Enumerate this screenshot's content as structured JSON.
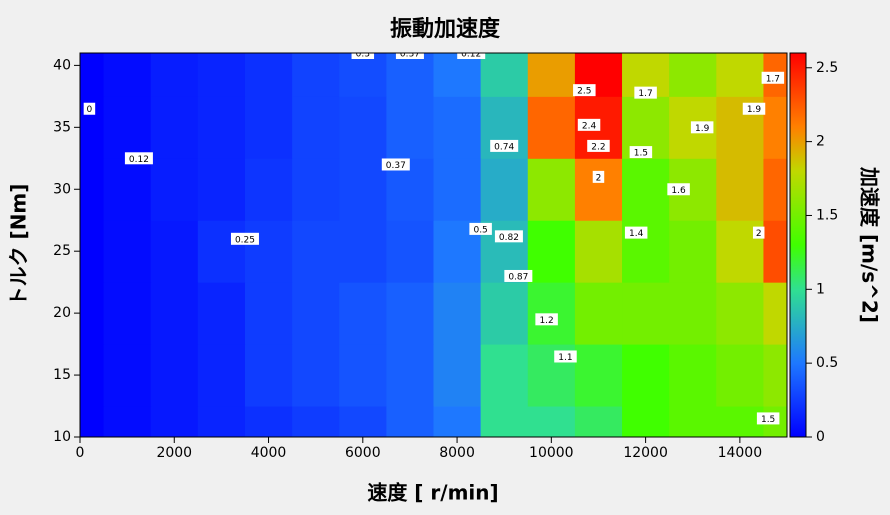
{
  "chart_data": {
    "type": "contour",
    "title": "振動加速度",
    "x_label": "速度 [ r/min]",
    "y_label": "トルク [Nm]",
    "colorbar_label": "加速度 [m/s^2]",
    "xlim": [
      0,
      15000
    ],
    "xticks": [
      0,
      2000,
      4000,
      6000,
      8000,
      10000,
      12000,
      14000
    ],
    "ylim": [
      10,
      41
    ],
    "yticks": [
      10,
      15,
      20,
      25,
      30,
      35,
      40
    ],
    "clim": [
      0,
      2.6
    ],
    "cticks": [
      0,
      0.5,
      1,
      1.5,
      2,
      2.5
    ],
    "colorscale": [
      [
        0,
        "#0000ff"
      ],
      [
        0.5,
        "#1e78ff"
      ],
      [
        1,
        "#30e090"
      ],
      [
        1.3,
        "#40ff00"
      ],
      [
        1.8,
        "#c0d800"
      ],
      [
        2.1,
        "#ff8000"
      ],
      [
        2.6,
        "#ff0000"
      ]
    ],
    "x": [
      0,
      1000,
      2000,
      3000,
      4000,
      5000,
      6000,
      7000,
      8000,
      9000,
      10000,
      11000,
      12000,
      13000,
      14000,
      15000
    ],
    "y": [
      10,
      15,
      20,
      25,
      30,
      35,
      40
    ],
    "z": [
      [
        0,
        0.05,
        0.1,
        0.15,
        0.2,
        0.25,
        0.3,
        0.4,
        0.5,
        1.0,
        1.0,
        1.1,
        1.3,
        1.4,
        1.4,
        1.5
      ],
      [
        0,
        0.05,
        0.1,
        0.15,
        0.25,
        0.3,
        0.35,
        0.4,
        0.55,
        1.0,
        1.1,
        1.2,
        1.3,
        1.4,
        1.5,
        1.6
      ],
      [
        0,
        0.05,
        0.1,
        0.15,
        0.25,
        0.3,
        0.35,
        0.4,
        0.55,
        0.9,
        1.2,
        1.5,
        1.5,
        1.5,
        1.6,
        1.8
      ],
      [
        0,
        0.05,
        0.1,
        0.2,
        0.25,
        0.3,
        0.3,
        0.35,
        0.5,
        0.82,
        1.3,
        1.7,
        1.4,
        1.5,
        1.8,
        2.3
      ],
      [
        0,
        0.05,
        0.12,
        0.15,
        0.22,
        0.28,
        0.3,
        0.37,
        0.45,
        0.75,
        1.6,
        2.1,
        1.4,
        1.6,
        1.9,
        2.2
      ],
      [
        0,
        0.05,
        0.12,
        0.15,
        0.2,
        0.28,
        0.3,
        0.4,
        0.45,
        0.8,
        2.2,
        2.5,
        1.6,
        1.8,
        1.9,
        2.1
      ],
      [
        0,
        0.05,
        0.12,
        0.15,
        0.2,
        0.28,
        0.32,
        0.4,
        0.5,
        0.9,
        2.0,
        2.6,
        1.8,
        1.6,
        1.8,
        2.2
      ]
    ],
    "contour_labels": [
      {
        "x": 200,
        "y": 36.5,
        "value": 0
      },
      {
        "x": 1250,
        "y": 32.5,
        "value": 0.12
      },
      {
        "x": 3500,
        "y": 26,
        "value": 0.25
      },
      {
        "x": 6000,
        "y": 41,
        "value": 0.3
      },
      {
        "x": 7000,
        "y": 41,
        "value": 0.37
      },
      {
        "x": 8300,
        "y": 41,
        "value": 0.12
      },
      {
        "x": 6700,
        "y": 32,
        "value": 0.37
      },
      {
        "x": 8500,
        "y": 26.8,
        "value": 0.5
      },
      {
        "x": 9000,
        "y": 33.5,
        "value": 0.74
      },
      {
        "x": 9100,
        "y": 26.2,
        "value": 0.82
      },
      {
        "x": 9300,
        "y": 23,
        "value": 0.87
      },
      {
        "x": 9900,
        "y": 19.5,
        "value": 1.2
      },
      {
        "x": 10300,
        "y": 16.5,
        "value": 1.1
      },
      {
        "x": 10700,
        "y": 38,
        "value": 2.5
      },
      {
        "x": 10800,
        "y": 35.2,
        "value": 2.4
      },
      {
        "x": 11000,
        "y": 33.5,
        "value": 2.2
      },
      {
        "x": 11000,
        "y": 31,
        "value": 2
      },
      {
        "x": 12000,
        "y": 37.8,
        "value": 1.7
      },
      {
        "x": 11900,
        "y": 33,
        "value": 1.5
      },
      {
        "x": 11800,
        "y": 26.5,
        "value": 1.4
      },
      {
        "x": 12700,
        "y": 30,
        "value": 1.6
      },
      {
        "x": 13200,
        "y": 35,
        "value": 1.9
      },
      {
        "x": 14300,
        "y": 36.5,
        "value": 1.9
      },
      {
        "x": 14700,
        "y": 39,
        "value": 1.7
      },
      {
        "x": 14400,
        "y": 26.5,
        "value": 2
      },
      {
        "x": 14600,
        "y": 11.5,
        "value": 1.5
      }
    ]
  }
}
